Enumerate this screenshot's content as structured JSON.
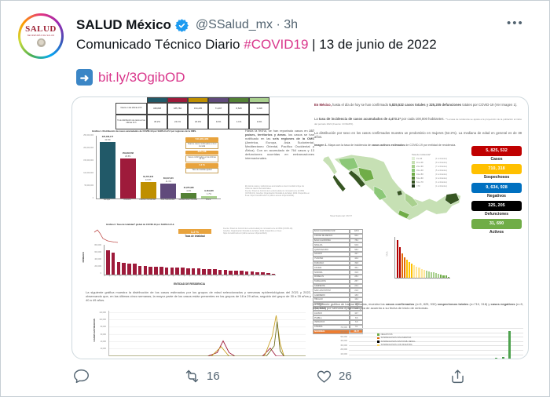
{
  "page": {
    "border": "#c6ced4"
  },
  "tweet": {
    "author": {
      "name": "SALUD México",
      "handle": "@SSalud_mx",
      "time": "· 3h",
      "avatar_word": "SALUD",
      "avatar_sub": "SECRETARÍA DE SALUD"
    },
    "more_label": "•••",
    "text": {
      "lead": "Comunicado Técnico Diario ",
      "hashtag": "#COVID19",
      "tail": " | 13 de junio de 2022"
    },
    "link": {
      "icon_glyph": "➜",
      "label": "bit.ly/3OgibOD"
    },
    "actions": {
      "retweet_count": "16",
      "like_count": "26"
    }
  },
  "ig": {
    "left": {
      "table": {
        "row1_label": "Casos en las últimas 24 h",
        "row2_label": "% de distribución de casos en las últimas 24 h",
        "cols": [
          {
            "color": "#215968",
            "cases": "348,838",
            "pct": "45.2%"
          },
          {
            "color": "#9e1b3b",
            "cases": "185,782",
            "pct": "24.1%"
          },
          {
            "color": "#bf8f00",
            "cases": "154,205",
            "pct": "20.0%"
          },
          {
            "color": "#604a7b",
            "cases": "71,297",
            "pct": "9.2%"
          },
          {
            "color": "#538135",
            "cases": "8,528",
            "pct": "1.1%"
          },
          {
            "color": "#a9d08e",
            "cases": "3,498",
            "pct": "0.4%"
          }
        ]
      },
      "g1": {
        "title": "Gráfica 1. Distribución de casos acumulados de COVID-19 por SARS-CoV-2 por regiones de la OMS.",
        "yticks": [
          "250,000,000",
          "200,000,000",
          "150,000,000",
          "100,000,000",
          "50,000,000",
          "0"
        ],
        "bars": [
          {
            "name": "Europa",
            "label": "225,186,177",
            "pct": "41.6%",
            "num": 225.2,
            "color": "#215968"
          },
          {
            "name": "América",
            "label": "159,984,568",
            "pct": "29.5%",
            "num": 160.0,
            "color": "#9e1b3b"
          },
          {
            "name": "Pacífico Occidental",
            "label": "64,767,045",
            "pct": "12.0%",
            "num": 64.8,
            "color": "#bf8f00"
          },
          {
            "name": "Asia Sudoriental",
            "label": "60,047,415",
            "pct": "11.1%",
            "num": 60.0,
            "color": "#604a7b"
          },
          {
            "name": "Mediterráneo Oriental",
            "label": "21,875,980",
            "pct": "4.0%",
            "num": 21.9,
            "color": "#538135"
          },
          {
            "name": "África",
            "label": "9,164,035",
            "pct": "1.7%",
            "num": 9.2,
            "color": "#a9d08e"
          }
        ],
        "boxes": [
          {
            "value": "541,981,963",
            "label": "Total de casos confirmados a nivel mundial"
          },
          {
            "value": "625,148",
            "label": "Casos confirmados en las últimas 24 hrs"
          },
          {
            "value": "1.2 %",
            "label": "Tasa de letalidad global"
          }
        ]
      },
      "who_text": [
        {
          "t": "Hasta la fecha, se han reportado casos en "
        },
        {
          "t": "237 países, territorios y áreas",
          "b": 1
        },
        {
          "t": ". los casos se han notificado en las "
        },
        {
          "t": "seis regiones de la OMS",
          "b": 1
        },
        {
          "t": " (América, Europa, Asia Sudoriental, Mediterráneo Oriental, Pacífico Occidental y África). Con un acumulado de 764 casos y 13 defunciones ocurridas en embarcaciones internacionales."
        }
      ],
      "who_foot": [
        "El total de casos y defunciones acumulados a nivel mundial incluye los",
        "cifras de casos internacionales.",
        "Fuente: Panel de Control de la enfermedad por coronavirus de la OMS",
        "(COVID-19). Ginebra: Organización Mundial de la Salud, 2022. Disponible en",
        "línea: https://covid19.who.int (último acceso 13/junio/2022)."
      ],
      "g2": {
        "title": "Gráfica 2. Tasa de letalidad* global de COVID-19 por SARS-CoV-2.",
        "box_value": "1.2 %",
        "box_label": "Tasa de letalidad",
        "foot": [
          "Fuente: Panel de Control de la enfermedad por coronavirus de la OMS (COVID-19).",
          "Ginebra: Organización Mundial de la Salud, 2022. Disponible en línea:",
          "https://covid19.who.int (último acceso 13/junio/2022)."
        ]
      },
      "states": {
        "ylabel": "NÚMERO",
        "xlabel": "ENTIDAD DE RESIDENCIA",
        "yticks": [
          "800,000",
          "600,000",
          "400,000",
          "200,000",
          "0"
        ],
        "names": [
          "CDMX",
          "MEX",
          "NL",
          "GTO",
          "JAL",
          "TAB",
          "PUE",
          "SON",
          "VER",
          "COAH",
          "SLP",
          "QRO",
          "SIN",
          "BC",
          "TAM",
          "MICH",
          "HGO",
          "OAX",
          "YUC",
          "CHIH",
          "GRO",
          "DGO",
          "QROO",
          "MOR",
          "AGS",
          "ZAC",
          "CHIS",
          "BCS",
          "NAY",
          "CAM",
          "COL",
          "TLAX"
        ],
        "values": [
          655,
          590,
          345,
          320,
          305,
          290,
          235,
          225,
          215,
          210,
          205,
          198,
          192,
          186,
          180,
          174,
          168,
          160,
          152,
          146,
          138,
          130,
          122,
          112,
          104,
          96,
          88,
          78,
          68,
          58,
          44,
          26
        ]
      },
      "age_text": [
        {
          "t": "La siguiente gráfica muestra la distribución de los casos estimados por los grupos de edad seleccionados y semanas epidemiológicas del 2021 y 2022, observando que, en las últimas cinco semanas, la mayor parte de los casos están presentes en los grupos de 18 a 29 años, seguido del grupo de 30 a 39 años y 40 a 49 años."
        }
      ],
      "age": {
        "ylabel": "CASOS ESTIMADOS",
        "yticks": [
          120000,
          100000,
          80000,
          60000,
          40000,
          20000
        ],
        "series": [
          {
            "color": "#9e1b3b",
            "pts": [
              [
                0,
                0
              ],
              [
                50,
                0
              ],
              [
                55,
                10
              ],
              [
                58,
                42
              ],
              [
                61,
                10
              ],
              [
                64,
                0
              ],
              [
                78,
                0
              ],
              [
                82,
                22
              ],
              [
                85,
                0
              ],
              [
                100,
                0
              ]
            ]
          },
          {
            "color": "#c9a227",
            "pts": [
              [
                0,
                0
              ],
              [
                52,
                0
              ],
              [
                57,
                26
              ],
              [
                61,
                0
              ],
              [
                79,
                0
              ],
              [
                83,
                55
              ],
              [
                85,
                112
              ],
              [
                87,
                35
              ],
              [
                89,
                0
              ],
              [
                100,
                0
              ]
            ]
          },
          {
            "color": "#6e6e1f",
            "pts": [
              [
                0,
                0
              ],
              [
                80,
                0
              ],
              [
                84,
                28
              ],
              [
                85.5,
                95
              ],
              [
                87,
                15
              ],
              [
                89,
                0
              ],
              [
                100,
                0
              ]
            ]
          }
        ]
      }
    },
    "right": {
      "p1": [
        {
          "t": "En México, ",
          "b": 1,
          "c": "#7f1d35"
        },
        {
          "t": "hasta el día de hoy se han confirmado "
        },
        {
          "t": "5,825,532 casos totales y 325,205 defunciones ",
          "b": 1
        },
        {
          "t": "totales por COVID-19 (Ver Imagen 1)."
        }
      ],
      "p2": [
        {
          "t": "La "
        },
        {
          "t": "tasa de incidencia de casos acumulados de 4,473.1*",
          "b": 1
        },
        {
          "t": " por cada 100,000 habitantes. "
        },
        {
          "t": "**La tasa de incidencia se ajusta a la proyección de la población al inicio del periodo 2021 (Fuente: CONAPO).",
          "s": 1
        }
      ],
      "p3": [
        {
          "t": "La distribución por sexo en los casos confirmados muestra un predominio en mujeres (52.2%). La mediana de edad en general es de 38 años."
        }
      ],
      "imagen1": [
        {
          "t": "Imagen 1. ",
          "b": 1
        },
        {
          "t": "Mapa con la tasa de incidencia de "
        },
        {
          "t": "casos activos estimados",
          "b": 1
        },
        {
          "t": " de COVID-19 por entidad de residencia."
        }
      ],
      "map": {
        "legend_title": "Tasa de incidencia*",
        "palette": [
          "#e2efda",
          "#c6e0b4",
          "#a9d08e",
          "#8cc878",
          "#70ad47",
          "#548235",
          "#375623",
          "#22391a"
        ],
        "classes": [
          {
            "range": "0 a 10",
            "n": "(4 entidades)"
          },
          {
            "range": "11 a 20",
            "n": "(9 entidades)"
          },
          {
            "range": "21 a 30",
            "n": "(7 entidades)"
          },
          {
            "range": "31 a 40",
            "n": "(5 entidades)"
          },
          {
            "range": "41 a 50",
            "n": "(3 entidades)"
          },
          {
            "range": "51 a 60",
            "n": "(2 entidades)"
          },
          {
            "range": "61 a 70",
            "n": "(1 entidades)"
          },
          {
            "range": ">70",
            "n": "(1 entidades)"
          }
        ],
        "national": "Tasa Nacional: 26.57"
      },
      "stats": [
        {
          "value": "5, 825, 532",
          "label": "Casos",
          "bg": "#c00000",
          "fg": "#ffffff"
        },
        {
          "value": "710, 318",
          "label": "Sospechosos",
          "bg": "#ffc000",
          "fg": "#ffffff"
        },
        {
          "value": "9, 634, 928",
          "label": "Negativos",
          "bg": "#0070c0",
          "fg": "#ffffff"
        },
        {
          "value": "325, 205",
          "label": "Defunciones",
          "bg": "#000000",
          "fg": "#ffffff"
        },
        {
          "value": "31, 690",
          "label": "Activos",
          "bg": "#70ad47",
          "fg": "#ffffff"
        }
      ],
      "table": {
        "rows": [
          [
            "BAJA CALIFORNIA SUR",
            "120.6"
          ],
          [
            "CIUDAD DE MÉXICO",
            "96.4"
          ],
          [
            "BAJA CALIFORNIA",
            "78.2"
          ],
          [
            "SINALOA",
            "64.9"
          ],
          [
            "QUINTANA ROO",
            "58.3"
          ],
          [
            "NAYARIT",
            "49.7"
          ],
          [
            "YUCATÁN",
            "44.2"
          ],
          [
            "DURANGO",
            "39.8"
          ],
          [
            "COLIMA",
            "35.1"
          ],
          [
            "SONORA",
            "31.6"
          ],
          [
            "MORELOS",
            "28.4"
          ],
          [
            "TAMAULIPAS",
            "25.7"
          ],
          [
            "CAMPECHE",
            "23.2"
          ],
          [
            "SAN LUIS POTOSÍ",
            "21.0"
          ],
          [
            "GUERRERO",
            "18.6"
          ],
          [
            "HIDALGO",
            "16.4"
          ],
          [
            "TABASCO",
            "14.8"
          ],
          [
            "QUERÉTARO",
            "12.9"
          ],
          [
            "JALISCO",
            "10.7"
          ],
          [
            "PUEBLA",
            "8.6"
          ],
          [
            "VERACRUZ",
            "6.9"
          ],
          [
            "CHIAPAS",
            "3.1"
          ]
        ],
        "national_label": "NACIONAL",
        "national_value": "26.57"
      },
      "incidence": {
        "palette": [
          "#b30000",
          "#e26b0a",
          "#ffc000",
          "#ffe699",
          "#a9d08e",
          "#70ad47"
        ]
      },
      "stacked_text": [
        {
          "t": "La siguiente gráfica de barras apiladas, muestra los "
        },
        {
          "t": "casos confirmados",
          "b": 1
        },
        {
          "t": " (n=5, 825, 532) "
        },
        {
          "t": "sospechosos totales",
          "b": 1
        },
        {
          "t": " (n=710, 318) y "
        },
        {
          "t": "casos negativos",
          "b": 1
        },
        {
          "t": " (n=9, 634, 928) por semana epidemiológica de acuerdo a su fecha de inicio de síntomas."
        }
      ],
      "stacked": {
        "yticks": [
          "700,000",
          "600,000",
          "500,000",
          "400,000",
          "300,000",
          "200,000",
          "100,000"
        ],
        "legend": [
          {
            "label": "NEGATIVOS",
            "color": "#70ad47"
          },
          {
            "label": "SOSPECHOSOS SIN MUESTRA",
            "color": "#e26b0a"
          },
          {
            "label": "SOSPECHOSOS SIN POSIB. RESUL.",
            "color": "#000000"
          },
          {
            "label": "SOSPECHOSOS CON MUESTRA",
            "color": "#ffd966"
          }
        ],
        "bars": [
          {
            "f": 0.914,
            "v": 620
          },
          {
            "f": 0.88,
            "v": 40
          },
          {
            "f": 0.84,
            "v": 18
          }
        ]
      }
    }
  }
}
